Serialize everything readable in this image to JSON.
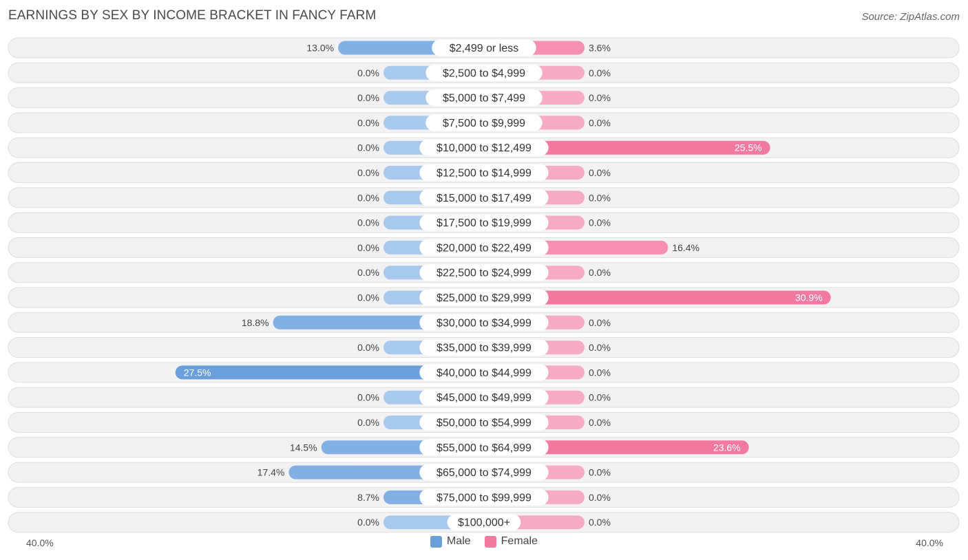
{
  "chart_data": {
    "type": "bar",
    "orientation": "horizontal-diverging",
    "title": "EARNINGS BY SEX BY INCOME BRACKET IN FANCY FARM",
    "source": "Source: ZipAtlas.com",
    "categories": [
      "$2,499 or less",
      "$2,500 to $4,999",
      "$5,000 to $7,499",
      "$7,500 to $9,999",
      "$10,000 to $12,499",
      "$12,500 to $14,999",
      "$15,000 to $17,499",
      "$17,500 to $19,999",
      "$20,000 to $22,499",
      "$22,500 to $24,999",
      "$25,000 to $29,999",
      "$30,000 to $34,999",
      "$35,000 to $39,999",
      "$40,000 to $44,999",
      "$45,000 to $49,999",
      "$50,000 to $54,999",
      "$55,000 to $64,999",
      "$65,000 to $74,999",
      "$75,000 to $99,999",
      "$100,000+"
    ],
    "series": [
      {
        "name": "Male",
        "values": [
          13.0,
          0.0,
          0.0,
          0.0,
          0.0,
          0.0,
          0.0,
          0.0,
          0.0,
          0.0,
          0.0,
          18.8,
          0.0,
          27.5,
          0.0,
          0.0,
          14.5,
          17.4,
          8.7,
          0.0
        ],
        "labels": [
          "13.0%",
          "0.0%",
          "0.0%",
          "0.0%",
          "0.0%",
          "0.0%",
          "0.0%",
          "0.0%",
          "0.0%",
          "0.0%",
          "0.0%",
          "18.8%",
          "0.0%",
          "27.5%",
          "0.0%",
          "0.0%",
          "14.5%",
          "17.4%",
          "8.7%",
          "0.0%"
        ],
        "color": "#6a9fdc",
        "light_color": "#a9c8ee"
      },
      {
        "name": "Female",
        "values": [
          3.6,
          0.0,
          0.0,
          0.0,
          25.5,
          0.0,
          0.0,
          0.0,
          16.4,
          0.0,
          30.9,
          0.0,
          0.0,
          0.0,
          0.0,
          0.0,
          23.6,
          0.0,
          0.0,
          0.0
        ],
        "labels": [
          "3.6%",
          "0.0%",
          "0.0%",
          "0.0%",
          "25.5%",
          "0.0%",
          "0.0%",
          "0.0%",
          "16.4%",
          "0.0%",
          "30.9%",
          "0.0%",
          "0.0%",
          "0.0%",
          "0.0%",
          "0.0%",
          "23.6%",
          "0.0%",
          "0.0%",
          "0.0%"
        ],
        "color": "#f27aa0",
        "light_color": "#f6aac3"
      }
    ],
    "xlim": [
      -40,
      40
    ],
    "axis_min_label": "40.0%",
    "axis_max_label": "40.0%",
    "legend": [
      "Male",
      "Female"
    ],
    "legend_position": "bottom-center"
  }
}
